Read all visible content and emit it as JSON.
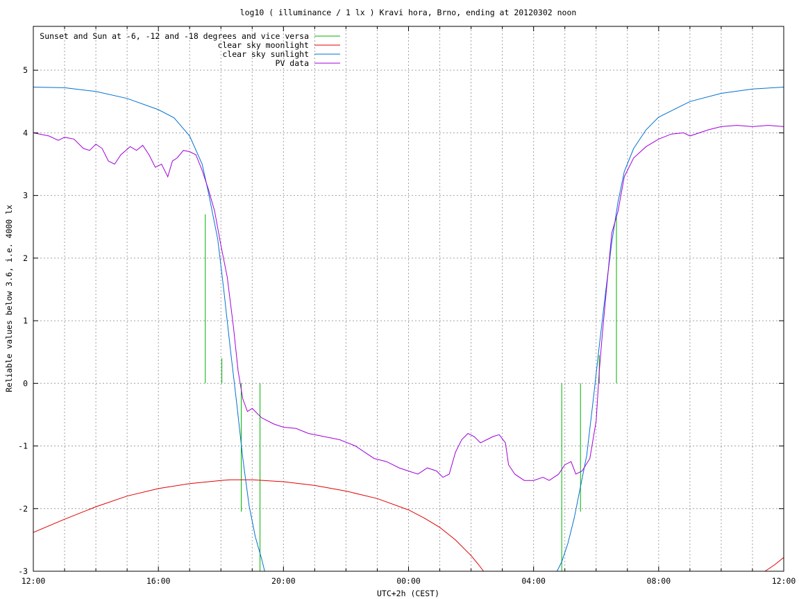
{
  "chart_data": {
    "type": "line",
    "title": "log10 ( illuminance / 1 lx ) Kravi hora, Brno, ending at 20120302 noon",
    "xlabel": "UTC+2h (CEST)",
    "ylabel": "Reliable values below 3.6, i.e. 4000 lx",
    "x_unit": "hours since 12:00",
    "xlim": [
      0,
      24
    ],
    "ylim": [
      -3,
      5.7
    ],
    "x_tick_positions": [
      0,
      4,
      8,
      12,
      16,
      20,
      24
    ],
    "x_tick_labels": [
      "12:00",
      "16:00",
      "20:00",
      "00:00",
      "04:00",
      "08:00",
      "12:00"
    ],
    "y_ticks": [
      -3,
      -2,
      -1,
      0,
      1,
      2,
      3,
      4,
      5
    ],
    "grid": true,
    "legend_position": "top-left",
    "series": [
      {
        "name": "Sunset and Sun at -6, -12 and -18 degrees and vice versa",
        "color": "#00b000",
        "kind": "vertical-markers",
        "markers": [
          {
            "x": 5.5,
            "y_top": 2.7,
            "y_bottom": 0
          },
          {
            "x": 6.03,
            "y_top": 0.4,
            "y_bottom": 0
          },
          {
            "x": 6.65,
            "y_top": 0,
            "y_bottom": -2.05
          },
          {
            "x": 7.25,
            "y_top": 0,
            "y_bottom": -3
          },
          {
            "x": 16.9,
            "y_top": 0,
            "y_bottom": -3
          },
          {
            "x": 17.5,
            "y_top": 0,
            "y_bottom": -2.05
          },
          {
            "x": 18.1,
            "y_top": 0.45,
            "y_bottom": 0
          },
          {
            "x": 18.65,
            "y_top": 2.65,
            "y_bottom": 0
          }
        ]
      },
      {
        "name": "clear sky moonlight",
        "color": "#e00000",
        "points": [
          [
            0,
            -2.38
          ],
          [
            1,
            -2.17
          ],
          [
            2,
            -1.97
          ],
          [
            3,
            -1.8
          ],
          [
            4,
            -1.68
          ],
          [
            5,
            -1.6
          ],
          [
            6,
            -1.55
          ],
          [
            6.3,
            -1.54
          ],
          [
            7,
            -1.54
          ],
          [
            8,
            -1.57
          ],
          [
            9,
            -1.63
          ],
          [
            10,
            -1.72
          ],
          [
            11,
            -1.84
          ],
          [
            12,
            -2.02
          ],
          [
            12.5,
            -2.15
          ],
          [
            13,
            -2.3
          ],
          [
            13.5,
            -2.5
          ],
          [
            14,
            -2.75
          ],
          [
            14.25,
            -2.9
          ],
          [
            14.4,
            -3.0
          ],
          [
            23.4,
            -3.0
          ],
          [
            23.7,
            -2.9
          ],
          [
            24,
            -2.78
          ]
        ]
      },
      {
        "name": "clear sky sunlight",
        "color": "#0070d0",
        "points": [
          [
            0,
            4.73
          ],
          [
            1,
            4.72
          ],
          [
            2,
            4.66
          ],
          [
            3,
            4.55
          ],
          [
            4,
            4.37
          ],
          [
            4.5,
            4.24
          ],
          [
            5,
            3.95
          ],
          [
            5.4,
            3.5
          ],
          [
            5.6,
            3.05
          ],
          [
            5.9,
            2.3
          ],
          [
            6.1,
            1.45
          ],
          [
            6.3,
            0.55
          ],
          [
            6.5,
            -0.3
          ],
          [
            6.7,
            -1.2
          ],
          [
            6.9,
            -1.95
          ],
          [
            7.1,
            -2.45
          ],
          [
            7.3,
            -2.8
          ],
          [
            7.4,
            -3.0
          ],
          [
            16.75,
            -3.0
          ],
          [
            16.9,
            -2.85
          ],
          [
            17.1,
            -2.55
          ],
          [
            17.3,
            -2.15
          ],
          [
            17.5,
            -1.65
          ],
          [
            17.7,
            -1.15
          ],
          [
            17.9,
            -0.3
          ],
          [
            18.1,
            0.6
          ],
          [
            18.3,
            1.45
          ],
          [
            18.5,
            2.25
          ],
          [
            18.7,
            2.9
          ],
          [
            18.9,
            3.38
          ],
          [
            19.2,
            3.75
          ],
          [
            19.6,
            4.05
          ],
          [
            20,
            4.25
          ],
          [
            21,
            4.5
          ],
          [
            22,
            4.63
          ],
          [
            23,
            4.7
          ],
          [
            24,
            4.73
          ]
        ]
      },
      {
        "name": "PV data",
        "color": "#a000d8",
        "points": [
          [
            0,
            4.0
          ],
          [
            0.5,
            3.95
          ],
          [
            0.8,
            3.88
          ],
          [
            1.0,
            3.93
          ],
          [
            1.3,
            3.9
          ],
          [
            1.6,
            3.75
          ],
          [
            1.8,
            3.72
          ],
          [
            2.0,
            3.82
          ],
          [
            2.2,
            3.75
          ],
          [
            2.4,
            3.55
          ],
          [
            2.6,
            3.5
          ],
          [
            2.8,
            3.65
          ],
          [
            3.1,
            3.78
          ],
          [
            3.3,
            3.72
          ],
          [
            3.5,
            3.8
          ],
          [
            3.7,
            3.65
          ],
          [
            3.9,
            3.45
          ],
          [
            4.1,
            3.5
          ],
          [
            4.3,
            3.3
          ],
          [
            4.45,
            3.55
          ],
          [
            4.6,
            3.6
          ],
          [
            4.8,
            3.72
          ],
          [
            5.0,
            3.7
          ],
          [
            5.2,
            3.65
          ],
          [
            5.4,
            3.4
          ],
          [
            5.6,
            3.1
          ],
          [
            5.8,
            2.75
          ],
          [
            6.0,
            2.2
          ],
          [
            6.2,
            1.7
          ],
          [
            6.4,
            0.9
          ],
          [
            6.55,
            0.2
          ],
          [
            6.7,
            -0.25
          ],
          [
            6.85,
            -0.45
          ],
          [
            7.0,
            -0.4
          ],
          [
            7.3,
            -0.55
          ],
          [
            7.7,
            -0.65
          ],
          [
            8.0,
            -0.7
          ],
          [
            8.4,
            -0.72
          ],
          [
            8.8,
            -0.8
          ],
          [
            9.3,
            -0.85
          ],
          [
            9.8,
            -0.9
          ],
          [
            10.3,
            -1.0
          ],
          [
            10.6,
            -1.1
          ],
          [
            10.9,
            -1.2
          ],
          [
            11.3,
            -1.25
          ],
          [
            11.7,
            -1.35
          ],
          [
            12.0,
            -1.4
          ],
          [
            12.3,
            -1.45
          ],
          [
            12.6,
            -1.35
          ],
          [
            12.9,
            -1.4
          ],
          [
            13.1,
            -1.5
          ],
          [
            13.3,
            -1.45
          ],
          [
            13.5,
            -1.1
          ],
          [
            13.7,
            -0.9
          ],
          [
            13.9,
            -0.8
          ],
          [
            14.1,
            -0.85
          ],
          [
            14.3,
            -0.95
          ],
          [
            14.5,
            -0.9
          ],
          [
            14.7,
            -0.85
          ],
          [
            14.9,
            -0.82
          ],
          [
            15.1,
            -0.95
          ],
          [
            15.2,
            -1.3
          ],
          [
            15.4,
            -1.45
          ],
          [
            15.7,
            -1.55
          ],
          [
            16.0,
            -1.55
          ],
          [
            16.3,
            -1.5
          ],
          [
            16.5,
            -1.55
          ],
          [
            16.8,
            -1.45
          ],
          [
            17.0,
            -1.3
          ],
          [
            17.2,
            -1.25
          ],
          [
            17.35,
            -1.45
          ],
          [
            17.55,
            -1.4
          ],
          [
            17.8,
            -1.2
          ],
          [
            18.0,
            -0.6
          ],
          [
            18.1,
            0.2
          ],
          [
            18.2,
            0.8
          ],
          [
            18.35,
            1.6
          ],
          [
            18.5,
            2.4
          ],
          [
            18.7,
            2.75
          ],
          [
            18.9,
            3.3
          ],
          [
            19.2,
            3.6
          ],
          [
            19.6,
            3.78
          ],
          [
            20.0,
            3.9
          ],
          [
            20.4,
            3.98
          ],
          [
            20.8,
            4.0
          ],
          [
            21.0,
            3.95
          ],
          [
            21.3,
            4.0
          ],
          [
            21.6,
            4.05
          ],
          [
            22.0,
            4.1
          ],
          [
            22.5,
            4.12
          ],
          [
            23.0,
            4.1
          ],
          [
            23.5,
            4.12
          ],
          [
            24.0,
            4.1
          ]
        ]
      }
    ]
  }
}
